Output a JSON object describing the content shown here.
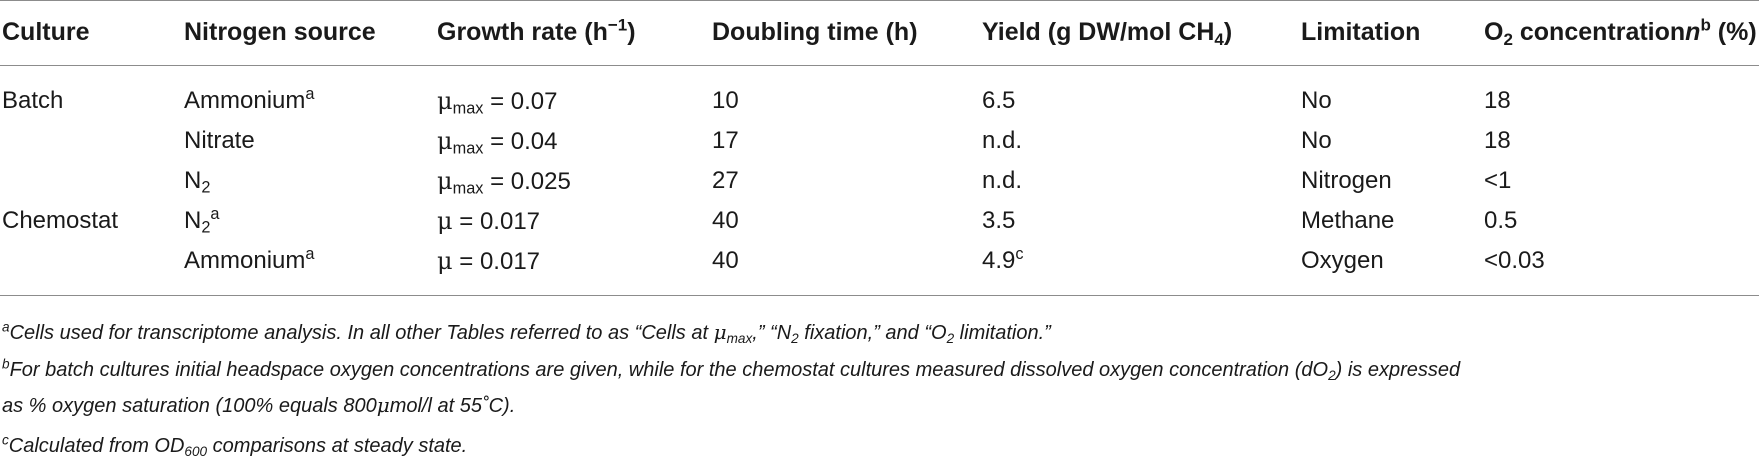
{
  "chart_data": {
    "type": "table",
    "columns": [
      "Culture",
      "Nitrogen source",
      "Growth rate (h−1)",
      "Doubling time (h)",
      "Yield (g DW/mol CH4)",
      "Limitation",
      "O2 concentrationnb (%)"
    ],
    "rows": [
      {
        "culture": "Batch",
        "nitrogen_source": "Ammonium",
        "nitrogen_note": "a",
        "growth_symbol": "μmax",
        "growth_rate": 0.07,
        "doubling_time": 10,
        "yield": "6.5",
        "yield_note": "",
        "limitation": "No",
        "o2": "18"
      },
      {
        "culture": "",
        "nitrogen_source": "Nitrate",
        "nitrogen_note": "",
        "growth_symbol": "μmax",
        "growth_rate": 0.04,
        "doubling_time": 17,
        "yield": "n.d.",
        "yield_note": "",
        "limitation": "No",
        "o2": "18"
      },
      {
        "culture": "",
        "nitrogen_source": "N2",
        "nitrogen_note": "",
        "growth_symbol": "μmax",
        "growth_rate": 0.025,
        "doubling_time": 27,
        "yield": "n.d.",
        "yield_note": "",
        "limitation": "Nitrogen",
        "o2": "<1"
      },
      {
        "culture": "Chemostat",
        "nitrogen_source": "N2",
        "nitrogen_note": "a",
        "growth_symbol": "μ",
        "growth_rate": 0.017,
        "doubling_time": 40,
        "yield": "3.5",
        "yield_note": "",
        "limitation": "Methane",
        "o2": "0.5"
      },
      {
        "culture": "",
        "nitrogen_source": "Ammonium",
        "nitrogen_note": "a",
        "growth_symbol": "μ",
        "growth_rate": 0.017,
        "doubling_time": 40,
        "yield": "4.9",
        "yield_note": "c",
        "limitation": "Oxygen",
        "o2": "<0.03"
      }
    ]
  },
  "header": {
    "culture": "Culture",
    "nitrogen_source": "Nitrogen source",
    "growth_rate_pre": "Growth rate (h",
    "growth_rate_sup": "−1",
    "growth_rate_post": ")",
    "doubling_time": "Doubling time (h)",
    "yield_pre": "Yield (g DW/mol CH",
    "yield_sub": "4",
    "yield_post": ")",
    "limitation": "Limitation",
    "o2_pre": "O",
    "o2_sub": "2",
    "o2_mid": " concentration",
    "o2_n": "n",
    "o2_sup": "b",
    "o2_post": " (%)"
  },
  "cells": {
    "r1": {
      "culture": "Batch",
      "nsrc": "Ammonium",
      "nsrc_sup": "a",
      "mu": "μ",
      "mu_sub": "max",
      "rate": " = 0.07",
      "dt": "10",
      "yield": "6.5",
      "lim": "No",
      "o2": "18"
    },
    "r2": {
      "nsrc": "Nitrate",
      "mu": "μ",
      "mu_sub": "max",
      "rate": " = 0.04",
      "dt": "17",
      "yield": "n.d.",
      "lim": "No",
      "o2": "18"
    },
    "r3": {
      "nsrc": "N",
      "nsrc_sub": "2",
      "mu": "μ",
      "mu_sub": "max",
      "rate": " = 0.025",
      "dt": "27",
      "yield": "n.d.",
      "lim": "Nitrogen",
      "o2": "<1"
    },
    "r4": {
      "culture": "Chemostat",
      "nsrc": "N",
      "nsrc_sub": "2",
      "nsrc_sup": "a",
      "mu": "μ",
      "rate": " = 0.017",
      "dt": "40",
      "yield": "3.5",
      "lim": "Methane",
      "o2": "0.5"
    },
    "r5": {
      "nsrc": "Ammonium",
      "nsrc_sup": "a",
      "mu": "μ",
      "rate": " = 0.017",
      "dt": "40",
      "yield": "4.9",
      "yield_sup": "c",
      "lim": "Oxygen",
      "o2": "<0.03"
    }
  },
  "footnotes": {
    "a_mark": "a",
    "a_text1": "Cells used for transcriptome analysis. In all other Tables referred to as “Cells at ",
    "a_mu": "μ",
    "a_mu_sub": "max",
    "a_text2": ",” “N",
    "a_n2_sub": "2",
    "a_text3": " fixation,” and “O",
    "a_o2_sub": "2",
    "a_text4": " limitation.”",
    "b_mark": "b",
    "b_text1": "For batch cultures initial headspace oxygen concentrations are given, while for the chemostat cultures measured dissolved oxygen concentration (dO",
    "b_sub": "2",
    "b_text2": ") is expressed",
    "b_line2_pre": "as % oxygen saturation (100% equals 800",
    "b_mu": "μ",
    "b_line2_post": "mol/l at 55˚C).",
    "c_mark": "c",
    "c_text1": "Calculated from OD",
    "c_sub": "600",
    "c_text2": " comparisons at steady state."
  }
}
